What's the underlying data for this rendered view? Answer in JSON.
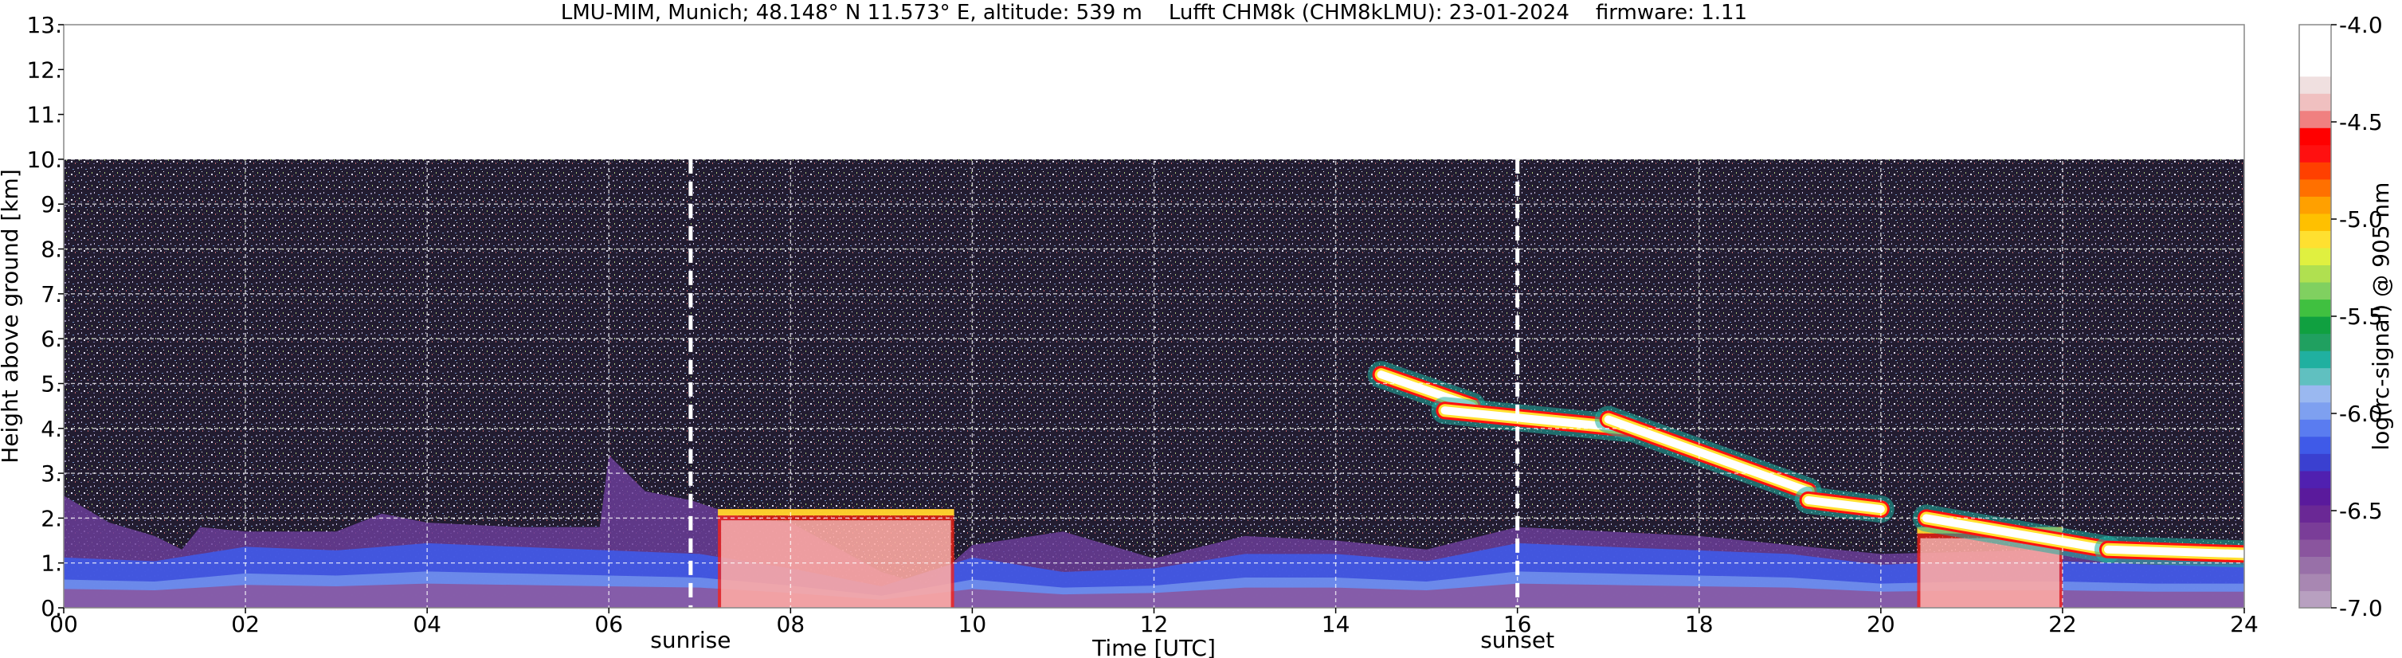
{
  "chart_data": {
    "type": "heatmap",
    "title": "LMU-MIM, Munich; 48.148° N 11.573° E, altitude: 539 m    Lufft CHM8k (CHM8kLMU): 23-01-2024    firmware: 1.11",
    "xlabel": "Time [UTC]",
    "ylabel": "Height above ground [km]",
    "xlim": [
      0,
      24
    ],
    "ylim": [
      0,
      13
    ],
    "x_ticks": [
      0,
      2,
      4,
      6,
      8,
      10,
      12,
      14,
      16,
      18,
      20,
      22,
      24
    ],
    "x_tick_labels": [
      "00",
      "02",
      "04",
      "06",
      "08",
      "10",
      "12",
      "14",
      "16",
      "18",
      "20",
      "22",
      "24"
    ],
    "y_ticks": [
      0,
      1,
      2,
      3,
      4,
      5,
      6,
      7,
      8,
      9,
      10,
      11,
      12,
      13
    ],
    "y_tick_labels": [
      "0.",
      "1.",
      "2.",
      "3.",
      "4.",
      "5.",
      "6.",
      "7.",
      "8.",
      "9.",
      "10.",
      "11.",
      "12.",
      "13."
    ],
    "grid": true,
    "data_top_km": 10,
    "markers": [
      {
        "label": "sunrise",
        "time": 6.9
      },
      {
        "label": "sunset",
        "time": 16.0
      }
    ],
    "colorbar": {
      "label": "log(rc-signal) @ 905 nm",
      "range": [
        -7.0,
        -4.0
      ],
      "tick_values": [
        -4.0,
        -4.5,
        -5.0,
        -5.5,
        -6.0,
        -6.5,
        -7.0
      ],
      "tick_labels": [
        "-4.0",
        "-4.5",
        "-5.0",
        "-5.5",
        "-6.0",
        "-6.5",
        "-7.0"
      ],
      "colors": [
        "#b8a0c0",
        "#a887b2",
        "#9870a8",
        "#8a559e",
        "#7a3d98",
        "#6a2895",
        "#5a1a9c",
        "#5020b0",
        "#3a40d0",
        "#3f5ae8",
        "#5a7cf0",
        "#7ea0f0",
        "#9ab8f0",
        "#60c0c0",
        "#20b0a0",
        "#20a060",
        "#10a040",
        "#40c040",
        "#80d060",
        "#b0e050",
        "#e0f040",
        "#ffe030",
        "#ffc000",
        "#ffa000",
        "#ff7000",
        "#ff4000",
        "#ff1010",
        "#ff0000",
        "#f08080",
        "#f0c0c0",
        "#f0e0e0",
        "#ffffff",
        "#ffffff",
        "#ffffff"
      ]
    },
    "features": {
      "boundary_layer": [
        [
          0,
          1.4
        ],
        [
          1,
          1.3
        ],
        [
          2,
          1.7
        ],
        [
          3,
          1.6
        ],
        [
          4,
          1.8
        ],
        [
          5,
          1.7
        ],
        [
          6,
          1.6
        ],
        [
          7,
          1.5
        ],
        [
          8,
          1.1
        ],
        [
          9,
          0.6
        ],
        [
          10,
          1.4
        ],
        [
          11,
          1.0
        ],
        [
          12,
          1.1
        ],
        [
          13,
          1.5
        ],
        [
          14,
          1.5
        ],
        [
          15,
          1.3
        ],
        [
          16,
          1.8
        ],
        [
          17,
          1.7
        ],
        [
          18,
          1.6
        ],
        [
          19,
          1.5
        ],
        [
          20,
          1.2
        ],
        [
          21,
          1.3
        ],
        [
          22,
          1.3
        ],
        [
          23,
          1.2
        ],
        [
          24,
          1.2
        ]
      ],
      "aerosol_top": [
        [
          0,
          2.5
        ],
        [
          0.5,
          1.9
        ],
        [
          1,
          1.6
        ],
        [
          1.3,
          1.3
        ],
        [
          1.5,
          1.8
        ],
        [
          2,
          1.7
        ],
        [
          3,
          1.7
        ],
        [
          3.5,
          2.1
        ],
        [
          4,
          1.9
        ],
        [
          5,
          1.8
        ],
        [
          5.9,
          1.8
        ],
        [
          6,
          3.4
        ],
        [
          6.4,
          2.6
        ],
        [
          6.9,
          2.4
        ],
        [
          7.5,
          2.0
        ],
        [
          8,
          1.9
        ],
        [
          9,
          0.8
        ],
        [
          9.5,
          0.5
        ],
        [
          10,
          1.4
        ],
        [
          11,
          1.7
        ],
        [
          12,
          1.1
        ],
        [
          13,
          1.6
        ],
        [
          14,
          1.5
        ],
        [
          15,
          1.3
        ],
        [
          16,
          1.8
        ],
        [
          17,
          1.7
        ],
        [
          18,
          1.6
        ],
        [
          20,
          1.2
        ],
        [
          22,
          1.3
        ],
        [
          24,
          1.2
        ]
      ],
      "cloud_layers": [
        {
          "x": [
            14.5,
            15.5
          ],
          "y": [
            5.2,
            4.5
          ]
        },
        {
          "x": [
            15.2,
            17.2
          ],
          "y": [
            4.4,
            4.0
          ]
        },
        {
          "x": [
            17.0,
            19.2
          ],
          "y": [
            4.2,
            2.6
          ]
        },
        {
          "x": [
            19.2,
            20.0
          ],
          "y": [
            2.4,
            2.2
          ]
        },
        {
          "x": [
            20.5,
            22.5
          ],
          "y": [
            2.0,
            1.3
          ]
        },
        {
          "x": [
            22.5,
            24.0
          ],
          "y": [
            1.3,
            1.2
          ]
        }
      ],
      "precipitation": [
        {
          "x": [
            7.2,
            9.8
          ],
          "top": 2.2
        },
        {
          "x": [
            20.4,
            22.0
          ],
          "top": 1.8
        }
      ]
    }
  }
}
